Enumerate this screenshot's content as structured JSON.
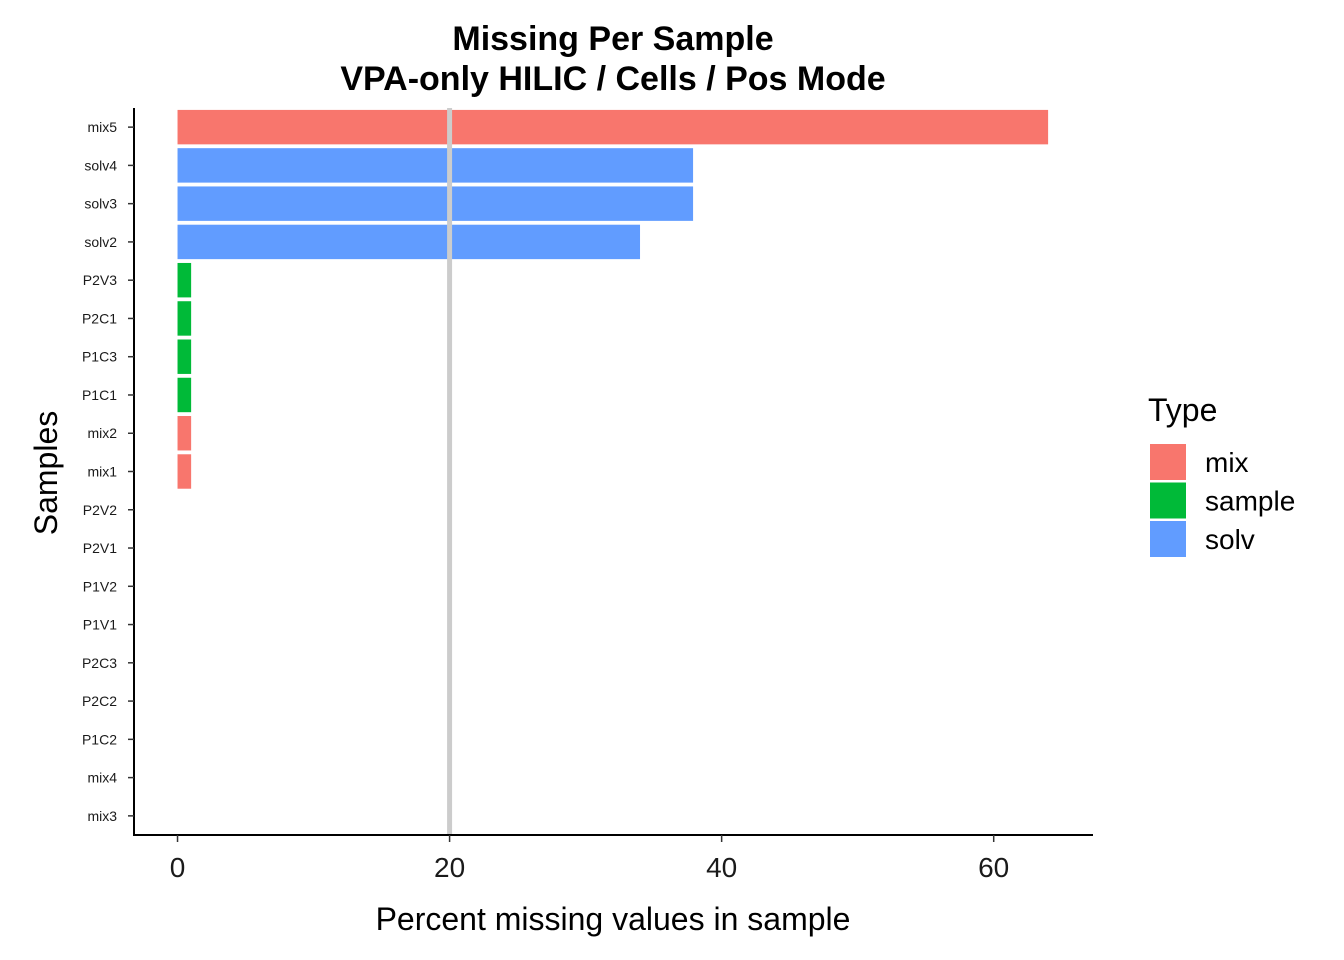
{
  "chart_data": {
    "type": "bar",
    "orientation": "horizontal",
    "title": "Missing Per Sample",
    "subtitle": "VPA-only HILIC / Cells / Pos Mode",
    "xlabel": "Percent missing values in sample",
    "ylabel": "Samples",
    "xlim": [
      -3.2,
      67.3
    ],
    "xticks": [
      "0",
      "20",
      "40",
      "60"
    ],
    "xtick_values": [
      0,
      20,
      40,
      60
    ],
    "reference_line": 20,
    "reference_line_color": "#cccccc",
    "grid": false,
    "legend": {
      "title": "Type",
      "position": "right",
      "entries": [
        {
          "label": "mix",
          "color": "#F8766D"
        },
        {
          "label": "sample",
          "color": "#00BA38"
        },
        {
          "label": "solv",
          "color": "#619CFF"
        }
      ]
    },
    "categories": [
      "mix5",
      "solv4",
      "solv3",
      "solv2",
      "P2V3",
      "P2C1",
      "P1C3",
      "P1C1",
      "mix2",
      "mix1",
      "P2V2",
      "P2V1",
      "P1V2",
      "P1V1",
      "P2C3",
      "P2C2",
      "P1C2",
      "mix4",
      "mix3"
    ],
    "values": [
      64.0,
      37.9,
      37.9,
      34.0,
      1.0,
      1.0,
      1.0,
      1.0,
      1.0,
      1.0,
      0,
      0,
      0,
      0,
      0,
      0,
      0,
      0,
      0
    ],
    "types": [
      "mix",
      "solv",
      "solv",
      "solv",
      "sample",
      "sample",
      "sample",
      "sample",
      "mix",
      "mix",
      "sample",
      "sample",
      "sample",
      "sample",
      "sample",
      "sample",
      "sample",
      "mix",
      "mix"
    ]
  }
}
